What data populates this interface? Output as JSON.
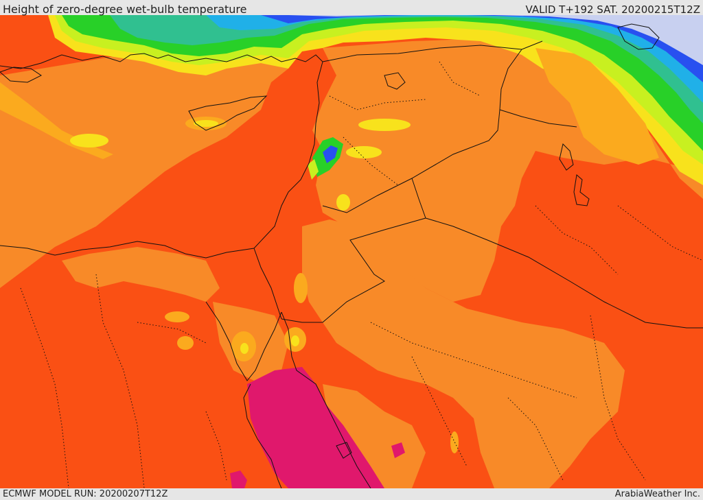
{
  "header": {
    "title": "Height of zero-degree wet-bulb temperature",
    "valid_time": "VALID T+192 SAT. 20200215T12Z"
  },
  "footer": {
    "model_run": "ECMWF MODEL RUN: 20200207T12Z",
    "credit": "ArabiaWeather Inc."
  },
  "map": {
    "region": "Eastern Mediterranean and Middle East",
    "colors": {
      "deep_orange": "#fa5014",
      "orange": "#f88a28",
      "light_orange": "#fbaa1e",
      "yellow": "#f8e21c",
      "yellow_green": "#c8f020",
      "green": "#28d028",
      "teal": "#30c090",
      "cyan": "#20b0e8",
      "blue": "#2850f0",
      "lavender": "#c8d0f0",
      "magenta": "#e0186c",
      "borders": "#111111"
    }
  }
}
